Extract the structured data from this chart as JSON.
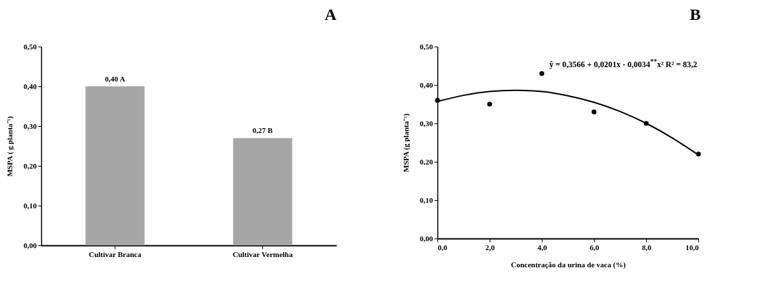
{
  "chart_data": [
    {
      "type": "bar",
      "title": "A",
      "ylabel": "MSPA ( g planta⁻¹)",
      "categories": [
        "Cultivar Branca",
        "Cultivar Vermelha"
      ],
      "values": [
        0.4,
        0.27
      ],
      "color": "#a6a6a6",
      "value_labels": [
        "0,40 A",
        "0,27 B"
      ],
      "ylim": [
        0,
        0.5
      ],
      "yticks": [
        {
          "value": 0,
          "label": "0,00"
        },
        {
          "value": 0.1,
          "label": "0,10"
        },
        {
          "value": 0.2,
          "label": "0,20"
        },
        {
          "value": 0.3,
          "label": "0,30"
        },
        {
          "value": 0.4,
          "label": "0,40"
        },
        {
          "value": 0.5,
          "label": "0,50"
        }
      ],
      "grid": false
    },
    {
      "type": "scatter",
      "title": "B",
      "xlabel": "Concentração  da urina de vaca (%)",
      "ylabel": "MSPA (g planta⁻¹)",
      "annotations": [
        "ŷ = 0,3566 + 0,0201x - 0,0034$^{**}$x² R² = 83,2"
      ],
      "x": [
        0,
        2,
        4,
        6,
        8,
        10
      ],
      "series": [
        {
          "type": "scatter",
          "color": "#000000",
          "marker": "circle",
          "values": [
            0.36,
            0.35,
            0.43,
            0.33,
            0.3,
            0.22
          ]
        },
        {
          "type": "line",
          "color": "#000000",
          "line_style": "solid",
          "marker": "none",
          "x": [
            0,
            1,
            2,
            3,
            4,
            5,
            6,
            7,
            8,
            9,
            10
          ],
          "values": [
            0.357,
            0.373,
            0.383,
            0.386,
            0.383,
            0.372,
            0.355,
            0.331,
            0.3,
            0.262,
            0.218
          ]
        }
      ],
      "xlim": [
        0,
        10
      ],
      "xticks": [
        {
          "value": 0,
          "label": "0,0"
        },
        {
          "value": 2,
          "label": "2,0"
        },
        {
          "value": 4,
          "label": "4,0"
        },
        {
          "value": 6,
          "label": "6,0"
        },
        {
          "value": 8,
          "label": "8,0"
        },
        {
          "value": 10,
          "label": "10,0"
        }
      ],
      "ylim": [
        0,
        0.5
      ],
      "yticks": [
        {
          "value": 0,
          "label": "0,00"
        },
        {
          "value": 0.1,
          "label": "0,10"
        },
        {
          "value": 0.2,
          "label": "0,20"
        },
        {
          "value": 0.3,
          "label": "0,30"
        },
        {
          "value": 0.4,
          "label": "0,40"
        },
        {
          "value": 0.5,
          "label": "0,50"
        }
      ],
      "grid": false
    }
  ]
}
